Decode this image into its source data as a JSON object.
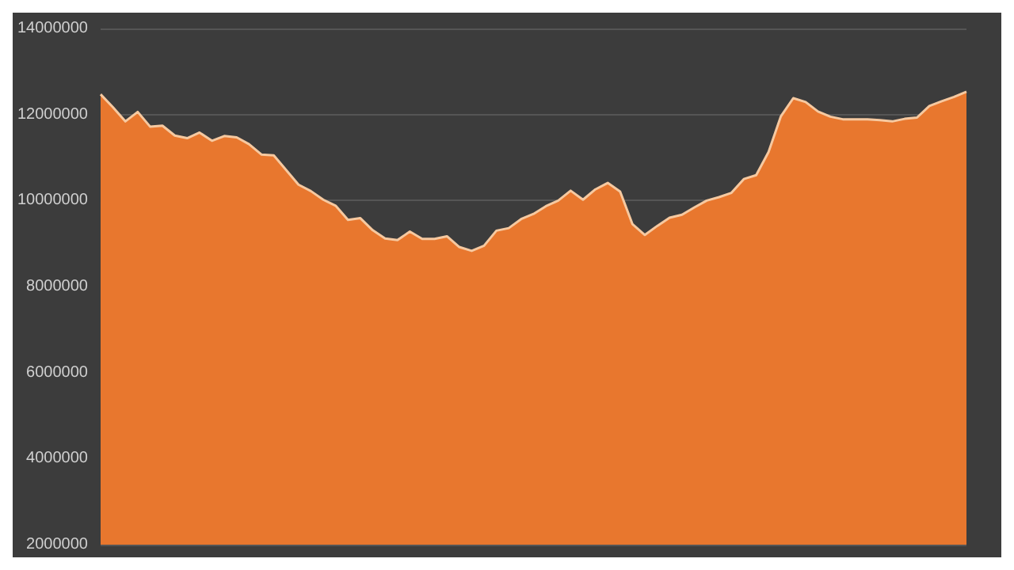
{
  "chart_data": {
    "type": "area",
    "categories": [
      null,
      null,
      null,
      null,
      null,
      null,
      null,
      null,
      null,
      null,
      null,
      null,
      null,
      null,
      null,
      null,
      null,
      null,
      null,
      null,
      null,
      null,
      null,
      null,
      null,
      null,
      null,
      null,
      null,
      null,
      null,
      null,
      null,
      null,
      null,
      null,
      null,
      null,
      null,
      null,
      null,
      null,
      null,
      null,
      null,
      null,
      null,
      null,
      null,
      null,
      null,
      null,
      null,
      null,
      null,
      null,
      null,
      null,
      null,
      null,
      null,
      null,
      null,
      null,
      null,
      null,
      null,
      null,
      null,
      null,
      null
    ],
    "series": [
      {
        "color": "#e8772e",
        "values": [
          12470000,
          12170000,
          11840000,
          12060000,
          11720000,
          11740000,
          11510000,
          11450000,
          11580000,
          11390000,
          11500000,
          11470000,
          11310000,
          11070000,
          11050000,
          10710000,
          10370000,
          10220000,
          10020000,
          9880000,
          9550000,
          9590000,
          9310000,
          9120000,
          9080000,
          9280000,
          9110000,
          9110000,
          9170000,
          8920000,
          8830000,
          8950000,
          9300000,
          9360000,
          9570000,
          9690000,
          9870000,
          10000000,
          10230000,
          10020000,
          10260000,
          10410000,
          10210000,
          9450000,
          9200000,
          9410000,
          9600000,
          9670000,
          9840000,
          10000000,
          10080000,
          10180000,
          10500000,
          10590000,
          11130000,
          11960000,
          12380000,
          12290000,
          12070000,
          11950000,
          11890000,
          11890000,
          11890000,
          11870000,
          11840000,
          11900000,
          11930000,
          12200000,
          12310000,
          12410000,
          12530000
        ]
      }
    ],
    "ylim": [
      2000000,
      14000000
    ],
    "yticks": [
      2000000,
      4000000,
      6000000,
      8000000,
      10000000,
      12000000,
      14000000
    ],
    "grid": "y"
  }
}
